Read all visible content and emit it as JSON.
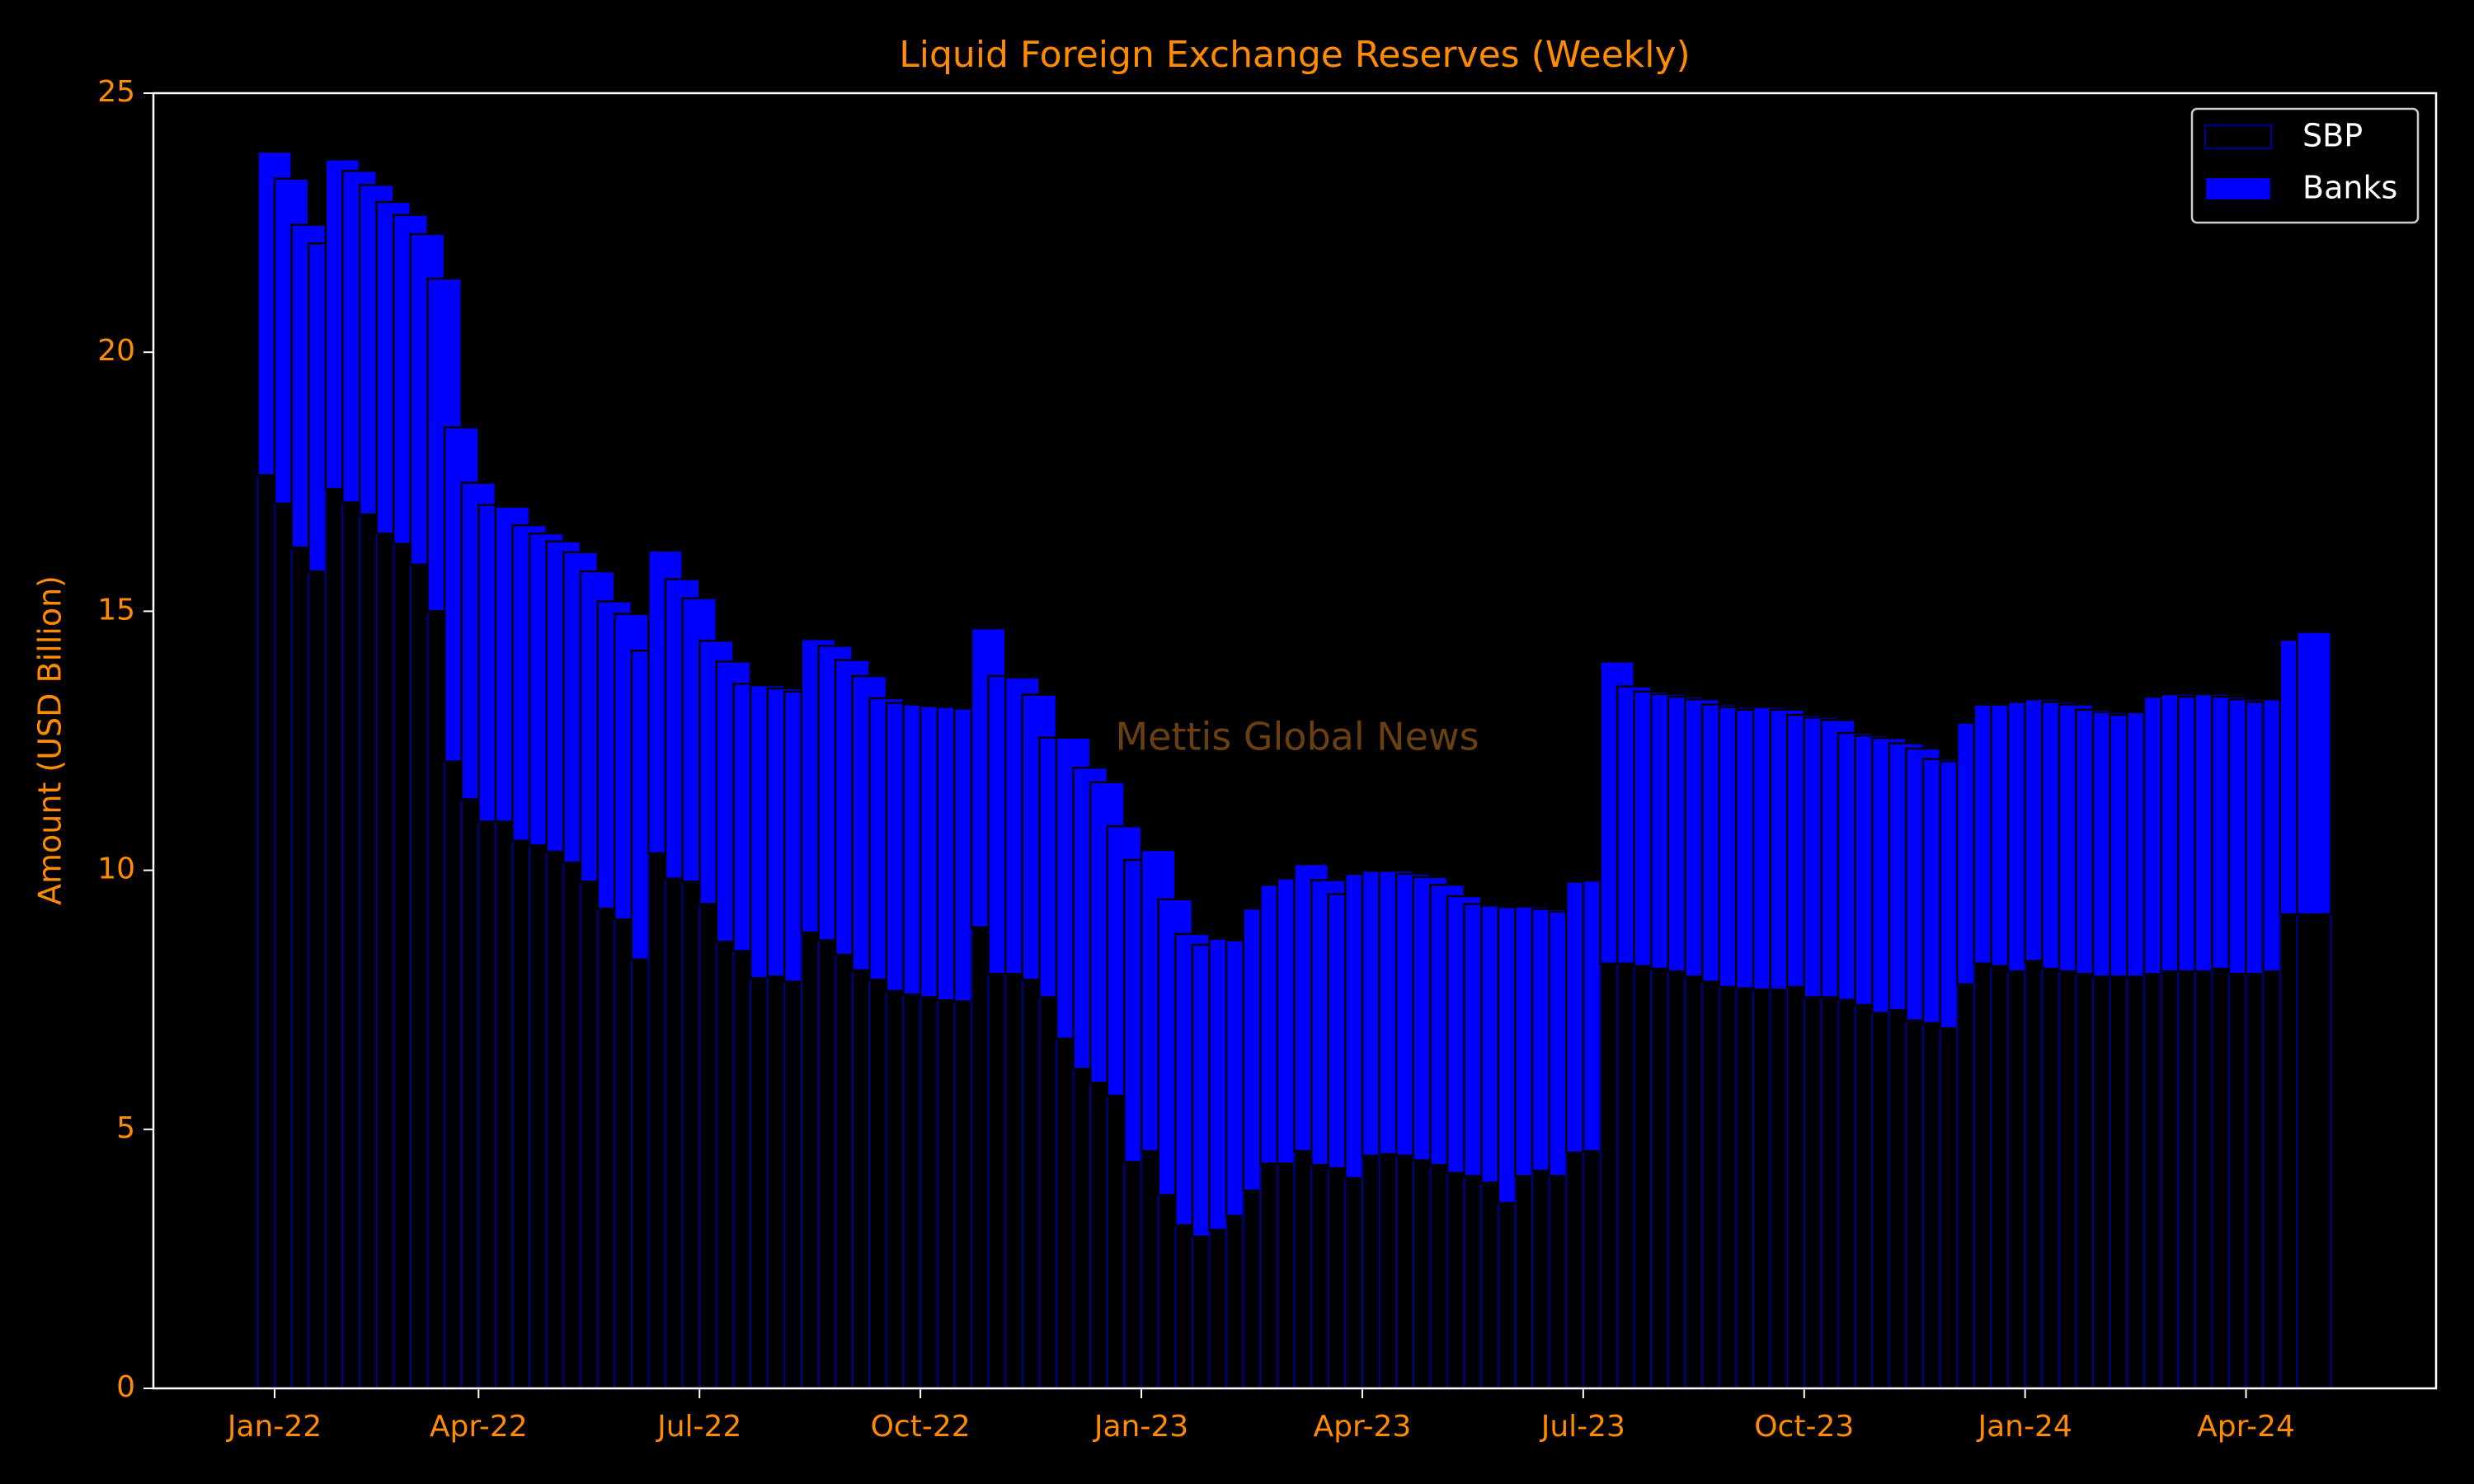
{
  "chart_data": {
    "type": "bar",
    "stacked": true,
    "title": "Liquid Foreign Exchange Reserves (Weekly)",
    "ylabel": "Amount (USD Billion)",
    "watermark": "Mettis Global News",
    "categories": [
      "Jan-22",
      null,
      null,
      null,
      null,
      null,
      null,
      null,
      null,
      null,
      null,
      null,
      "Apr-22",
      null,
      null,
      null,
      null,
      null,
      null,
      null,
      null,
      null,
      null,
      null,
      null,
      "Jul-22",
      null,
      null,
      null,
      null,
      null,
      null,
      null,
      null,
      null,
      null,
      null,
      null,
      "Oct-22",
      null,
      null,
      null,
      null,
      null,
      null,
      null,
      null,
      null,
      null,
      null,
      null,
      "Jan-23",
      null,
      null,
      null,
      null,
      null,
      null,
      null,
      null,
      null,
      null,
      null,
      null,
      "Apr-23",
      null,
      null,
      null,
      null,
      null,
      null,
      null,
      null,
      null,
      null,
      null,
      null,
      "Jul-23",
      null,
      null,
      null,
      null,
      null,
      null,
      null,
      null,
      null,
      null,
      null,
      null,
      "Oct-23",
      null,
      null,
      null,
      null,
      null,
      null,
      null,
      null,
      null,
      null,
      null,
      null,
      "Jan-24",
      null,
      null,
      null,
      null,
      null,
      null,
      null,
      null,
      null,
      null,
      null,
      null,
      "Apr-24",
      null,
      null,
      null,
      null
    ],
    "series": [
      {
        "name": "SBP",
        "color": "#000000",
        "edgecolor": "#000080",
        "values": [
          17.63,
          17.08,
          16.23,
          15.77,
          17.36,
          17.1,
          16.87,
          16.5,
          16.3,
          15.9,
          15.0,
          12.1,
          11.37,
          10.94,
          10.94,
          10.57,
          10.48,
          10.36,
          10.15,
          9.78,
          9.26,
          9.05,
          8.28,
          10.33,
          9.84,
          9.78,
          9.35,
          8.62,
          8.44,
          7.92,
          7.95,
          7.85,
          8.8,
          8.65,
          8.37,
          8.07,
          7.89,
          7.67,
          7.6,
          7.55,
          7.49,
          7.47,
          8.9,
          8.0,
          8.0,
          7.89,
          7.55,
          6.75,
          6.17,
          5.9,
          5.65,
          4.37,
          4.58,
          3.73,
          3.15,
          2.93,
          3.06,
          3.33,
          3.82,
          4.34,
          4.34,
          4.58,
          4.31,
          4.25,
          4.06,
          4.49,
          4.52,
          4.49,
          4.4,
          4.31,
          4.16,
          4.1,
          3.97,
          3.58,
          4.1,
          4.2,
          4.1,
          4.55,
          4.58,
          8.2,
          8.2,
          8.15,
          8.1,
          8.05,
          7.95,
          7.85,
          7.75,
          7.72,
          7.7,
          7.7,
          7.75,
          7.55,
          7.55,
          7.5,
          7.4,
          7.25,
          7.3,
          7.1,
          7.05,
          6.95,
          7.8,
          8.2,
          8.15,
          8.05,
          8.25,
          8.1,
          8.05,
          8.0,
          7.95,
          7.95,
          7.95,
          8.0,
          8.05,
          8.05,
          8.05,
          8.1,
          8.0,
          8.0,
          8.05,
          9.15,
          9.15
        ]
      },
      {
        "name": "Banks",
        "color": "#0000ff",
        "edgecolor": "#000000",
        "values": [
          6.24,
          6.27,
          6.23,
          6.33,
          6.36,
          6.4,
          6.36,
          6.4,
          6.35,
          6.38,
          6.42,
          6.45,
          6.11,
          6.11,
          6.08,
          6.09,
          6.02,
          5.99,
          5.99,
          5.99,
          5.93,
          5.9,
          5.96,
          5.84,
          5.78,
          5.47,
          5.08,
          5.41,
          5.16,
          5.65,
          5.56,
          5.6,
          5.66,
          5.68,
          5.69,
          5.68,
          5.43,
          5.56,
          5.6,
          5.62,
          5.66,
          5.65,
          5.77,
          5.75,
          5.72,
          5.5,
          5.01,
          5.81,
          5.81,
          5.8,
          5.2,
          5.83,
          5.81,
          5.71,
          5.62,
          5.63,
          5.62,
          5.32,
          5.44,
          5.38,
          5.5,
          5.54,
          5.5,
          5.29,
          5.87,
          5.5,
          5.47,
          5.44,
          5.47,
          5.41,
          5.34,
          5.25,
          5.35,
          5.71,
          5.2,
          5.05,
          5.1,
          5.23,
          5.22,
          5.83,
          5.35,
          5.3,
          5.3,
          5.3,
          5.35,
          5.35,
          5.4,
          5.38,
          5.45,
          5.4,
          5.25,
          5.4,
          5.35,
          5.15,
          5.2,
          5.3,
          5.15,
          5.25,
          5.1,
          5.15,
          5.05,
          5.0,
          5.05,
          5.2,
          5.05,
          5.15,
          5.15,
          5.1,
          5.1,
          5.05,
          5.1,
          5.35,
          5.35,
          5.3,
          5.35,
          5.25,
          5.3,
          5.25,
          5.25,
          5.3,
          5.45
        ]
      }
    ],
    "ylim": [
      0,
      25
    ],
    "yticks": [
      0,
      5,
      10,
      15,
      20,
      25
    ],
    "grid": false,
    "legend": "upper right"
  }
}
